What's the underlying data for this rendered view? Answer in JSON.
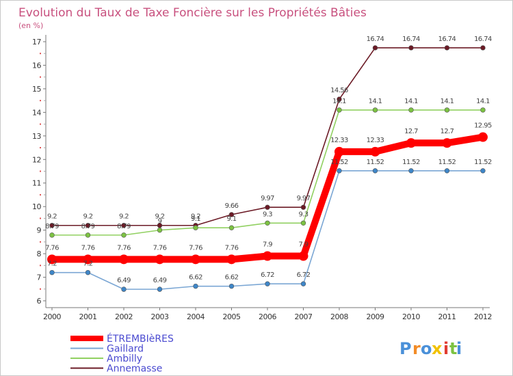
{
  "chart_data": {
    "type": "line",
    "title": "Evolution du Taux de Taxe Foncière sur les Propriétés Bâties",
    "subtitle": "(en %)",
    "x": [
      2000,
      2001,
      2002,
      2003,
      2004,
      2005,
      2006,
      2007,
      2008,
      2009,
      2010,
      2011,
      2012
    ],
    "ylim": [
      6,
      17
    ],
    "yticks": [
      6,
      7,
      8,
      9,
      10,
      11,
      12,
      13,
      14,
      15,
      16,
      17
    ],
    "grid": false,
    "legend_position": "bottom-left",
    "series": [
      {
        "name": "Annemasse",
        "color": "#6b1a25",
        "marker_color": "#6b1a25",
        "values": [
          9.2,
          9.2,
          9.2,
          9.2,
          9.2,
          9.66,
          9.97,
          9.97,
          14.56,
          16.74,
          16.74,
          16.74,
          16.74
        ],
        "labels": [
          "9.2",
          "9.2",
          "9.2",
          "9.2",
          "9.2",
          "9.66",
          "9.97",
          "9.97",
          "14.56",
          "16.74",
          "16.74",
          "16.74",
          "16.74"
        ]
      },
      {
        "name": "Ambilly",
        "color": "#90d060",
        "marker_color": "#7cc242",
        "values": [
          8.79,
          8.79,
          8.79,
          9,
          9.1,
          9.1,
          9.3,
          9.3,
          14.1,
          14.1,
          14.1,
          14.1,
          14.1
        ],
        "labels": [
          "8.79",
          "8.79",
          "8.79",
          "9",
          "9.1",
          "9.1",
          "9.3",
          "9.3",
          "14.1",
          "14.1",
          "14.1",
          "14.1",
          "14.1"
        ]
      },
      {
        "name": "Gaillard",
        "color": "#7aa6d4",
        "marker_color": "#3e86c8",
        "values": [
          7.2,
          7.2,
          6.49,
          6.49,
          6.62,
          6.62,
          6.72,
          6.72,
          11.52,
          11.52,
          11.52,
          11.52,
          11.52
        ],
        "labels": [
          "7.2",
          "7.2",
          "6.49",
          "6.49",
          "6.62",
          "6.62",
          "6.72",
          "6.72",
          "11.52",
          "11.52",
          "11.52",
          "11.52",
          "11.52"
        ]
      },
      {
        "name": "ÉTREMBIèRES",
        "color": "#ff0000",
        "marker_color": "#ff0000",
        "bold": true,
        "values": [
          7.76,
          7.76,
          7.76,
          7.76,
          7.76,
          7.76,
          7.9,
          7.9,
          12.33,
          12.33,
          12.7,
          12.7,
          12.95
        ],
        "labels": [
          "7.76",
          "7.76",
          "7.76",
          "7.76",
          "7.76",
          "7.76",
          "7.9",
          "7.9",
          "12.33",
          "12.33",
          "12.7",
          "12.7",
          "12.95"
        ]
      }
    ],
    "legend_order": [
      "ÉTREMBIèRES",
      "Gaillard",
      "Ambilly",
      "Annemasse"
    ]
  },
  "branding": {
    "logo_text": "Proxiti",
    "letters": [
      "P",
      "r",
      "o",
      "x",
      "i",
      "t",
      "i"
    ],
    "letter_colors": [
      "#4a90d9",
      "#f28c28",
      "#4a90d9",
      "#f2c200",
      "#e03c31",
      "#7cc242",
      "#4a90d9"
    ]
  }
}
